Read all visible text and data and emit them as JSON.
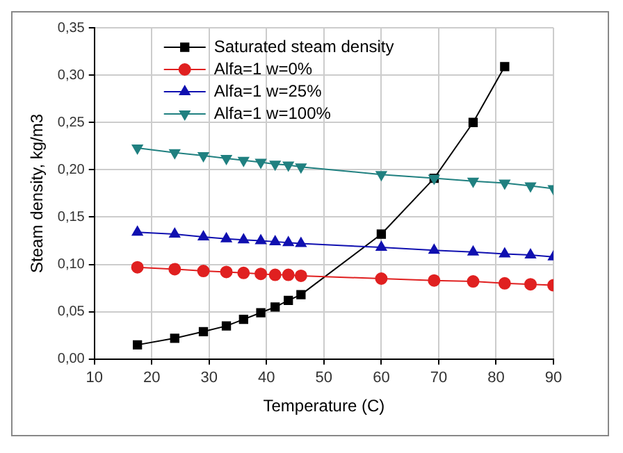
{
  "chart_data": {
    "type": "line",
    "xlabel": "Temperature (C)",
    "ylabel": "Steam density, kg/m3",
    "xlim": [
      10,
      90
    ],
    "xticks": [
      10,
      20,
      30,
      40,
      50,
      60,
      70,
      80,
      90
    ],
    "ylim": [
      0,
      0.35
    ],
    "yticks": [
      {
        "value": 0,
        "label": "0,00"
      },
      {
        "value": 0.05,
        "label": "0,05"
      },
      {
        "value": 0.1,
        "label": "0,10"
      },
      {
        "value": 0.15,
        "label": "0,15"
      },
      {
        "value": 0.2,
        "label": "0,20"
      },
      {
        "value": 0.25,
        "label": "0,25"
      },
      {
        "value": 0.3,
        "label": "0,30"
      },
      {
        "value": 0.35,
        "label": "0,35"
      }
    ],
    "grid": true,
    "legend": "top left",
    "series": [
      {
        "name": "Saturated steam density",
        "color": "#000000",
        "marker": "square",
        "x": [
          17.5,
          24,
          29,
          33,
          36,
          39,
          41.5,
          43.8,
          46,
          60,
          69.2,
          76,
          81.5
        ],
        "values": [
          0.015,
          0.022,
          0.029,
          0.035,
          0.042,
          0.049,
          0.055,
          0.062,
          0.068,
          0.132,
          0.191,
          0.25,
          0.309
        ]
      },
      {
        "name": "Alfa=1 w=0%",
        "color": "#e02020",
        "marker": "circle",
        "x": [
          17.5,
          24,
          29,
          33,
          36,
          39,
          41.5,
          43.8,
          46,
          60,
          69.2,
          76,
          81.5,
          86,
          90
        ],
        "values": [
          0.097,
          0.095,
          0.093,
          0.092,
          0.091,
          0.09,
          0.089,
          0.089,
          0.088,
          0.085,
          0.083,
          0.082,
          0.08,
          0.079,
          0.078
        ]
      },
      {
        "name": "Alfa=1 w=25%",
        "color": "#1010b0",
        "marker": "triangle",
        "x": [
          17.5,
          24,
          29,
          33,
          36,
          39,
          41.5,
          43.8,
          46,
          60,
          69.2,
          76,
          81.5,
          86,
          90
        ],
        "values": [
          0.134,
          0.132,
          0.129,
          0.127,
          0.126,
          0.125,
          0.124,
          0.123,
          0.122,
          0.118,
          0.115,
          0.113,
          0.111,
          0.11,
          0.108
        ]
      },
      {
        "name": "Alfa=1 w=100%",
        "color": "#208080",
        "marker": "triangle-down",
        "x": [
          17.5,
          24,
          29,
          33,
          36,
          39,
          41.5,
          43.8,
          46,
          60,
          69.2,
          76,
          81.5,
          86,
          90
        ],
        "values": [
          0.223,
          0.218,
          0.215,
          0.212,
          0.21,
          0.208,
          0.206,
          0.205,
          0.203,
          0.195,
          0.191,
          0.188,
          0.186,
          0.183,
          0.18
        ]
      }
    ]
  }
}
